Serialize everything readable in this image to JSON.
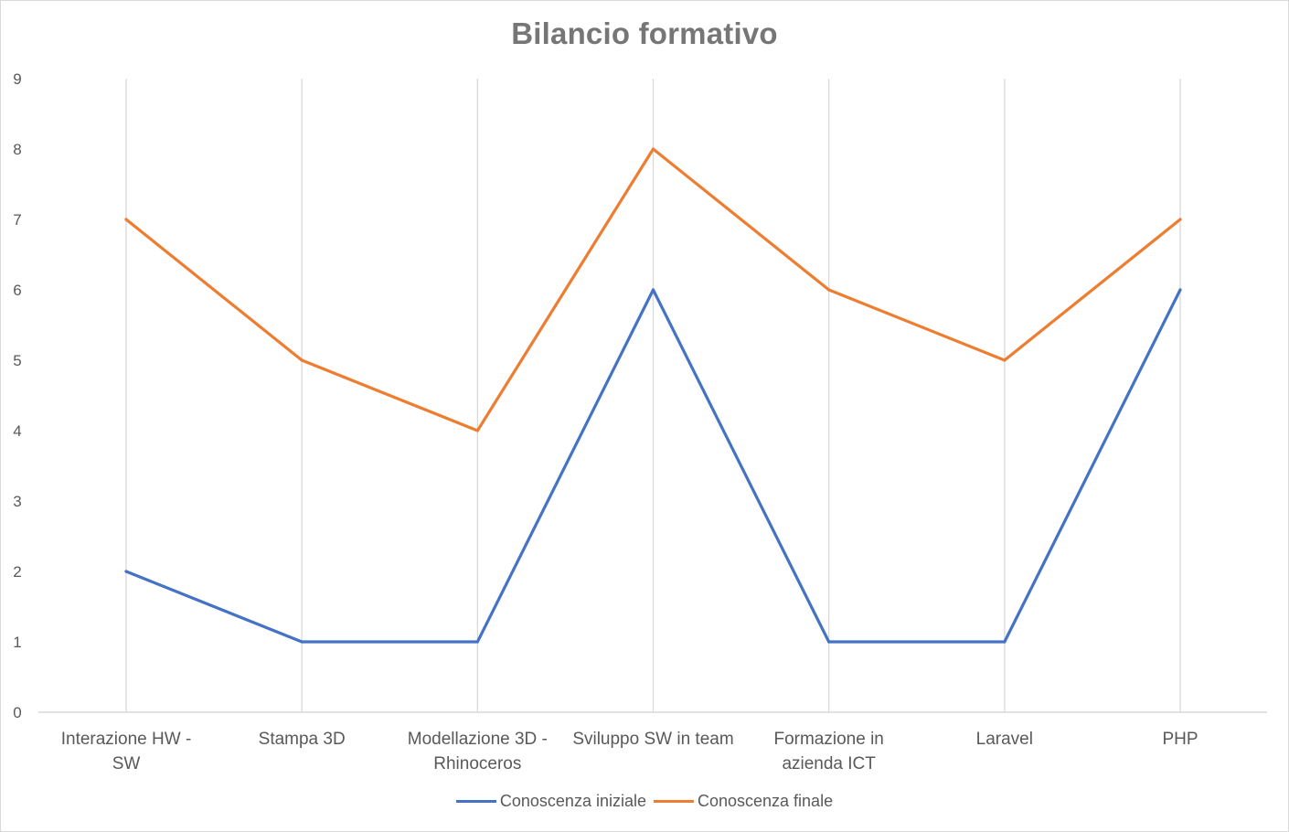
{
  "chart_data": {
    "type": "line",
    "title": "Bilancio formativo",
    "xlabel": "",
    "ylabel": "",
    "categories": [
      [
        "Interazione HW -",
        "SW"
      ],
      [
        "Stampa 3D"
      ],
      [
        "Modellazione 3D -",
        "Rhinoceros"
      ],
      [
        "Sviluppo SW in team"
      ],
      [
        "Formazione in",
        "azienda ICT"
      ],
      [
        "Laravel"
      ],
      [
        "PHP"
      ]
    ],
    "series": [
      {
        "name": "Conoscenza iniziale",
        "color": "#4472c4",
        "values": [
          2,
          1,
          1,
          6,
          1,
          1,
          6
        ]
      },
      {
        "name": "Conoscenza finale",
        "color": "#ed7d31",
        "values": [
          7,
          5,
          4,
          8,
          6,
          5,
          7
        ]
      }
    ],
    "ylim": [
      0,
      9
    ],
    "yticks": [
      "0",
      "1",
      "2",
      "3",
      "4",
      "5",
      "6",
      "7",
      "8",
      "9"
    ],
    "grid": "vertical",
    "legend": "bottom"
  }
}
